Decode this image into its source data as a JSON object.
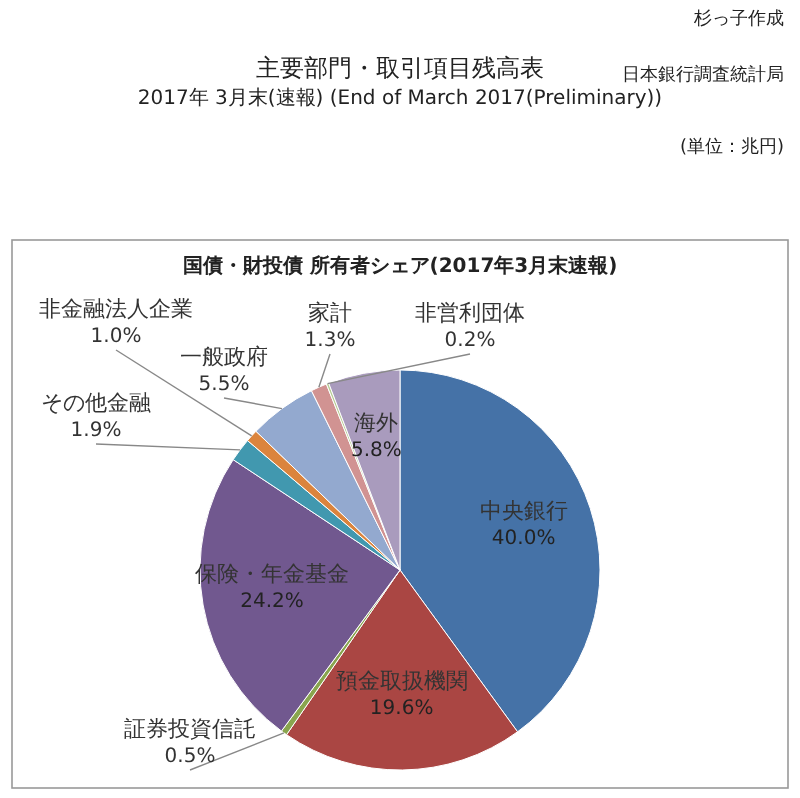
{
  "chart_data": {
    "type": "pie",
    "title": "国債・財投債 所有者シェア(2017年3月末速報)",
    "categories": [
      "中央銀行",
      "預金取扱機関",
      "証券投資信託",
      "保険・年金基金",
      "その他金融",
      "非金融法人企業",
      "一般政府",
      "家計",
      "非営利団体",
      "海外"
    ],
    "values": [
      40.0,
      19.6,
      0.5,
      24.2,
      1.9,
      1.0,
      5.5,
      1.3,
      0.2,
      5.8
    ],
    "colors": [
      "#4572a7",
      "#aa4643",
      "#89a54e",
      "#71588f",
      "#4198af",
      "#db843d",
      "#93a9cf",
      "#d19392",
      "#b9cd96",
      "#a99bbd"
    ],
    "annotations": [
      "杉っ子作成",
      "主要部門・取引項目残高表",
      "2017年 3月末(速報) (End of March 2017(Preliminary))",
      "日本銀行調査統計局",
      "(単位：兆円)"
    ],
    "value_labels": [
      "40.0%",
      "19.6%",
      "0.5%",
      "24.2%",
      "1.9%",
      "1.0%",
      "5.5%",
      "1.3%",
      "0.2%",
      "5.8%"
    ]
  }
}
